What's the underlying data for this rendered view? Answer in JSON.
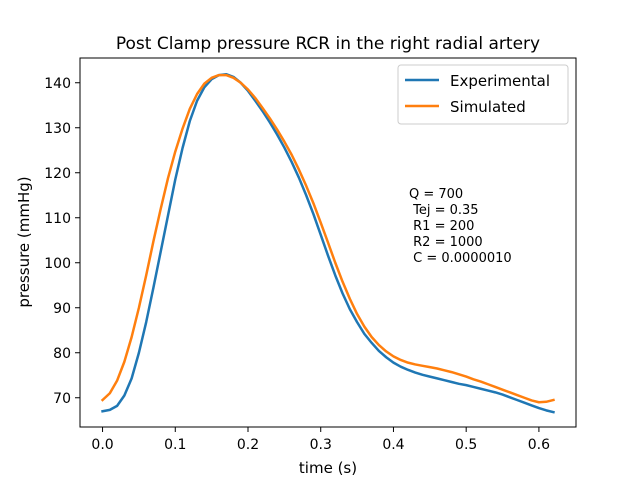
{
  "chart_data": {
    "type": "line",
    "title": "Post Clamp pressure RCR in the right radial artery",
    "xlabel": "time (s)",
    "ylabel": "pressure (mmHg)",
    "xlim": [
      -0.031,
      0.651
    ],
    "ylim": [
      63.5,
      145.5
    ],
    "xticks": [
      0.0,
      0.1,
      0.2,
      0.3,
      0.4,
      0.5,
      0.6
    ],
    "xtick_labels": [
      "0.0",
      "0.1",
      "0.2",
      "0.3",
      "0.4",
      "0.5",
      "0.6"
    ],
    "yticks": [
      70,
      80,
      90,
      100,
      110,
      120,
      130,
      140
    ],
    "ytick_labels": [
      "70",
      "80",
      "90",
      "100",
      "110",
      "120",
      "130",
      "140"
    ],
    "grid": false,
    "legend_position": "top-right",
    "series": [
      {
        "name": "Experimental",
        "color": "#1f77b4",
        "x": [
          0.0,
          0.01,
          0.02,
          0.03,
          0.04,
          0.05,
          0.06,
          0.07,
          0.08,
          0.09,
          0.1,
          0.11,
          0.12,
          0.13,
          0.14,
          0.15,
          0.16,
          0.17,
          0.18,
          0.19,
          0.2,
          0.21,
          0.22,
          0.23,
          0.24,
          0.25,
          0.26,
          0.27,
          0.28,
          0.29,
          0.3,
          0.31,
          0.32,
          0.33,
          0.34,
          0.35,
          0.36,
          0.37,
          0.38,
          0.39,
          0.4,
          0.41,
          0.42,
          0.43,
          0.44,
          0.45,
          0.46,
          0.47,
          0.48,
          0.49,
          0.5,
          0.51,
          0.52,
          0.53,
          0.54,
          0.55,
          0.56,
          0.57,
          0.58,
          0.59,
          0.6,
          0.61,
          0.62
        ],
        "y": [
          67.0,
          67.3,
          68.2,
          70.5,
          74.3,
          80.0,
          86.8,
          94.5,
          102.5,
          110.5,
          118.5,
          125.5,
          131.5,
          136.0,
          139.0,
          140.8,
          141.7,
          141.9,
          141.3,
          140.0,
          138.2,
          136.0,
          133.7,
          131.2,
          128.5,
          125.6,
          122.4,
          118.9,
          115.0,
          110.8,
          106.2,
          101.6,
          97.2,
          93.2,
          89.7,
          86.8,
          84.2,
          82.2,
          80.4,
          79.0,
          77.8,
          76.9,
          76.2,
          75.6,
          75.1,
          74.7,
          74.3,
          73.9,
          73.5,
          73.1,
          72.8,
          72.4,
          72.0,
          71.6,
          71.2,
          70.7,
          70.1,
          69.5,
          68.9,
          68.3,
          67.7,
          67.2,
          66.8
        ]
      },
      {
        "name": "Simulated",
        "color": "#ff7f0e",
        "x": [
          0.0,
          0.01,
          0.02,
          0.03,
          0.04,
          0.05,
          0.06,
          0.07,
          0.08,
          0.09,
          0.1,
          0.11,
          0.12,
          0.13,
          0.14,
          0.15,
          0.16,
          0.17,
          0.18,
          0.19,
          0.2,
          0.21,
          0.22,
          0.23,
          0.24,
          0.25,
          0.26,
          0.27,
          0.28,
          0.29,
          0.3,
          0.31,
          0.32,
          0.33,
          0.34,
          0.35,
          0.36,
          0.37,
          0.38,
          0.39,
          0.4,
          0.41,
          0.42,
          0.43,
          0.44,
          0.45,
          0.46,
          0.47,
          0.48,
          0.49,
          0.5,
          0.51,
          0.52,
          0.53,
          0.54,
          0.55,
          0.56,
          0.57,
          0.58,
          0.59,
          0.6,
          0.61,
          0.62
        ],
        "y": [
          69.5,
          71.0,
          73.8,
          78.0,
          83.5,
          90.0,
          97.2,
          104.8,
          112.0,
          118.8,
          124.7,
          129.8,
          134.2,
          137.5,
          139.8,
          141.1,
          141.7,
          141.7,
          141.1,
          140.0,
          138.5,
          136.6,
          134.4,
          132.1,
          129.6,
          126.9,
          124.0,
          120.7,
          117.1,
          113.2,
          108.9,
          104.5,
          100.0,
          95.8,
          92.0,
          88.6,
          85.8,
          83.5,
          81.7,
          80.3,
          79.2,
          78.4,
          77.8,
          77.4,
          77.1,
          76.8,
          76.5,
          76.1,
          75.7,
          75.2,
          74.7,
          74.1,
          73.6,
          73.0,
          72.4,
          71.8,
          71.2,
          70.6,
          70.0,
          69.4,
          69.0,
          69.1,
          69.5
        ]
      }
    ],
    "annotation": {
      "lines": [
        "Q = 700",
        " Tej = 0.35",
        " R1 = 200",
        " R2 = 1000",
        " C = 0.0000010"
      ]
    }
  }
}
